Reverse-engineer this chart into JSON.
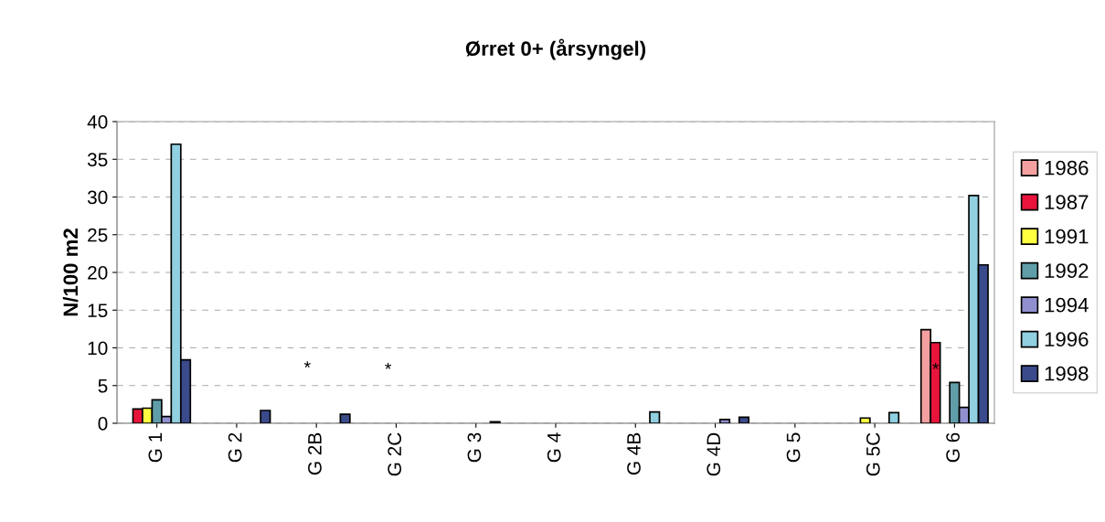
{
  "chart_data": {
    "type": "bar",
    "title": "Ørret 0+ (årsyngel)",
    "ylabel": "N/100 m2",
    "categories": [
      "G 1",
      "G 2",
      "G 2B",
      "G 2C",
      "G 3",
      "G 4",
      "G 4B",
      "G 4D",
      "G 5",
      "G 5C",
      "G 6"
    ],
    "series": [
      {
        "name": "1986",
        "color": "#f4a0a0",
        "values": [
          null,
          null,
          null,
          null,
          null,
          null,
          null,
          null,
          null,
          null,
          12.4
        ]
      },
      {
        "name": "1987",
        "color": "#e8143c",
        "values": [
          1.9,
          null,
          null,
          null,
          null,
          null,
          null,
          null,
          null,
          null,
          10.7
        ]
      },
      {
        "name": "1991",
        "color": "#ffff40",
        "values": [
          2.0,
          null,
          null,
          null,
          null,
          null,
          null,
          null,
          null,
          0.7,
          null
        ]
      },
      {
        "name": "1992",
        "color": "#5f9ea8",
        "values": [
          3.1,
          null,
          null,
          null,
          null,
          null,
          null,
          null,
          null,
          null,
          5.4
        ]
      },
      {
        "name": "1994",
        "color": "#9090d0",
        "values": [
          0.9,
          null,
          null,
          null,
          null,
          null,
          null,
          0.5,
          null,
          null,
          2.1
        ]
      },
      {
        "name": "1996",
        "color": "#90d0e0",
        "values": [
          37.0,
          null,
          null,
          null,
          0.2,
          null,
          1.5,
          null,
          null,
          1.4,
          30.2
        ]
      },
      {
        "name": "1998",
        "color": "#3a4a8a",
        "values": [
          8.4,
          1.7,
          1.2,
          null,
          null,
          null,
          null,
          0.8,
          null,
          null,
          21.0
        ]
      }
    ],
    "annotations": [
      "*",
      "*",
      "*"
    ],
    "ylim": [
      0,
      40
    ],
    "yticks": [
      0,
      5,
      10,
      15,
      20,
      25,
      30,
      35,
      40
    ],
    "grid": "y",
    "legend": "right"
  }
}
